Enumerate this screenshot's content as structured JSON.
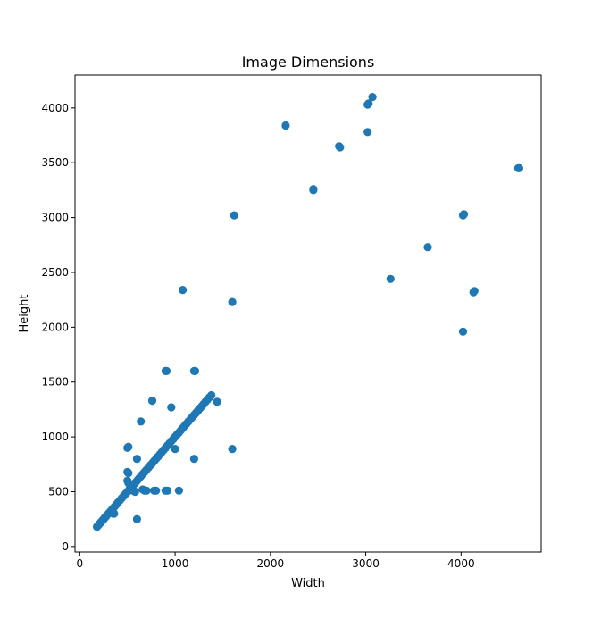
{
  "chart_data": {
    "type": "scatter",
    "title": "Image Dimensions",
    "xlabel": "Width",
    "ylabel": "Height",
    "xlim": [
      -50,
      4840
    ],
    "ylim": [
      -50,
      4300
    ],
    "xticks": [
      0,
      1000,
      2000,
      3000,
      4000
    ],
    "yticks": [
      0,
      500,
      1000,
      1500,
      2000,
      2500,
      3000,
      3500,
      4000
    ],
    "grid": false,
    "marker_color": "#1f77b4",
    "series": [
      {
        "points": [
          [
            180,
            180
          ],
          [
            190,
            190
          ],
          [
            200,
            200
          ],
          [
            210,
            210
          ],
          [
            220,
            220
          ],
          [
            230,
            230
          ],
          [
            240,
            240
          ],
          [
            250,
            250
          ],
          [
            260,
            260
          ],
          [
            270,
            270
          ],
          [
            280,
            280
          ],
          [
            300,
            300
          ],
          [
            320,
            320
          ],
          [
            340,
            340
          ],
          [
            360,
            360
          ],
          [
            380,
            380
          ],
          [
            400,
            400
          ],
          [
            420,
            420
          ],
          [
            440,
            440
          ],
          [
            460,
            460
          ],
          [
            480,
            480
          ],
          [
            500,
            500
          ],
          [
            520,
            520
          ],
          [
            540,
            540
          ],
          [
            560,
            560
          ],
          [
            580,
            580
          ],
          [
            600,
            600
          ],
          [
            620,
            620
          ],
          [
            640,
            640
          ],
          [
            660,
            660
          ],
          [
            680,
            680
          ],
          [
            700,
            700
          ],
          [
            720,
            720
          ],
          [
            740,
            740
          ],
          [
            760,
            760
          ],
          [
            780,
            780
          ],
          [
            800,
            800
          ],
          [
            820,
            820
          ],
          [
            840,
            840
          ],
          [
            860,
            860
          ],
          [
            880,
            880
          ],
          [
            900,
            900
          ],
          [
            920,
            920
          ],
          [
            940,
            940
          ],
          [
            960,
            960
          ],
          [
            980,
            980
          ],
          [
            1000,
            1000
          ],
          [
            1020,
            1020
          ],
          [
            1040,
            1040
          ],
          [
            1060,
            1060
          ],
          [
            1080,
            1080
          ],
          [
            1100,
            1100
          ],
          [
            1120,
            1120
          ],
          [
            1140,
            1140
          ],
          [
            1160,
            1160
          ],
          [
            1180,
            1180
          ],
          [
            1200,
            1200
          ],
          [
            1220,
            1220
          ],
          [
            1240,
            1240
          ],
          [
            1260,
            1260
          ],
          [
            1280,
            1280
          ],
          [
            1300,
            1300
          ],
          [
            1320,
            1320
          ],
          [
            1340,
            1340
          ],
          [
            1360,
            1360
          ],
          [
            1380,
            1380
          ],
          [
            350,
            300
          ],
          [
            360,
            300
          ],
          [
            500,
            900
          ],
          [
            510,
            910
          ],
          [
            500,
            680
          ],
          [
            510,
            670
          ],
          [
            500,
            600
          ],
          [
            510,
            580
          ],
          [
            540,
            560
          ],
          [
            560,
            560
          ],
          [
            560,
            510
          ],
          [
            580,
            500
          ],
          [
            600,
            800
          ],
          [
            600,
            250
          ],
          [
            640,
            1140
          ],
          [
            660,
            520
          ],
          [
            680,
            510
          ],
          [
            700,
            510
          ],
          [
            760,
            1330
          ],
          [
            780,
            510
          ],
          [
            800,
            510
          ],
          [
            900,
            1600
          ],
          [
            910,
            1600
          ],
          [
            900,
            510
          ],
          [
            920,
            510
          ],
          [
            960,
            1270
          ],
          [
            1000,
            890
          ],
          [
            1040,
            510
          ],
          [
            1080,
            2340
          ],
          [
            1200,
            1600
          ],
          [
            1210,
            1600
          ],
          [
            1200,
            800
          ],
          [
            1440,
            1320
          ],
          [
            1600,
            2230
          ],
          [
            1600,
            890
          ],
          [
            1620,
            3020
          ],
          [
            2160,
            3840
          ],
          [
            2450,
            3260
          ],
          [
            2450,
            3250
          ],
          [
            2720,
            3650
          ],
          [
            2730,
            3640
          ],
          [
            3020,
            4030
          ],
          [
            3030,
            4040
          ],
          [
            3020,
            3780
          ],
          [
            3070,
            4100
          ],
          [
            3260,
            2440
          ],
          [
            3650,
            2730
          ],
          [
            4020,
            3020
          ],
          [
            4030,
            3030
          ],
          [
            4020,
            1960
          ],
          [
            4130,
            2320
          ],
          [
            4140,
            2330
          ],
          [
            4600,
            3450
          ],
          [
            4610,
            3450
          ]
        ]
      }
    ]
  }
}
